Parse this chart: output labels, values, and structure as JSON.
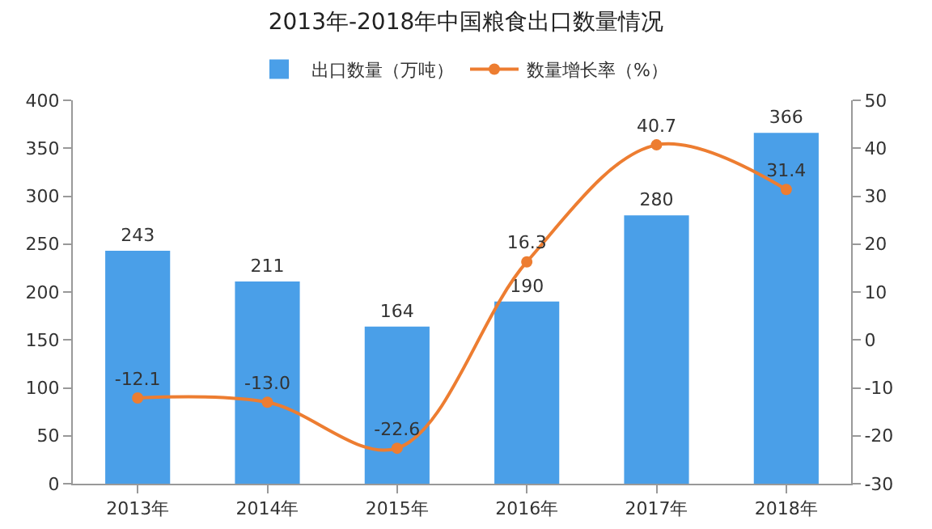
{
  "chart_data": {
    "type": "bar",
    "title": "2013年-2018年中国粮食出口数量情况",
    "categories": [
      "2013年",
      "2014年",
      "2015年",
      "2016年",
      "2017年",
      "2018年"
    ],
    "series": [
      {
        "name": "出口数量（万吨）",
        "color": "#4a9fe8",
        "values": [
          243,
          211,
          164,
          190,
          280,
          366
        ],
        "value_labels": [
          "243",
          "211",
          "164",
          "190",
          "280",
          "366"
        ]
      },
      {
        "name": "数量增长率（%）",
        "type": "line",
        "axis": "y2",
        "color": "#ed7d31",
        "values": [
          -12.1,
          -13.0,
          -22.6,
          16.3,
          40.7,
          31.4
        ],
        "value_labels": [
          "-12.1",
          "-13.0",
          "-22.6",
          "16.3",
          "40.7",
          "31.4"
        ]
      }
    ],
    "ylim": [
      0,
      400
    ],
    "yticks": [
      0,
      50,
      100,
      150,
      200,
      250,
      300,
      350,
      400
    ],
    "y2lim": [
      -30,
      50
    ],
    "y2ticks": [
      -30,
      -20,
      -10,
      0,
      10,
      20,
      30,
      40,
      50
    ],
    "grid": false,
    "legend": "top",
    "marker": "circle",
    "line_style": "solid"
  }
}
